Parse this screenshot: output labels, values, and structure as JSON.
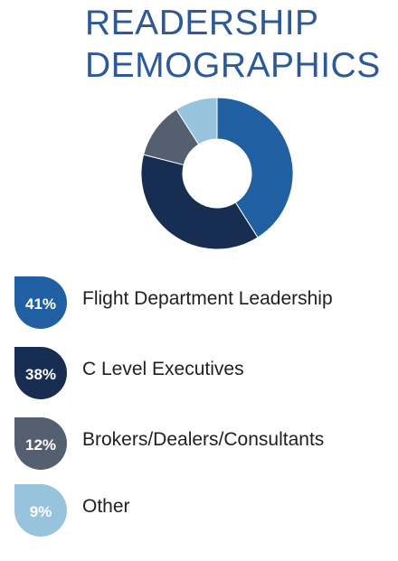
{
  "title": {
    "line1": "READERSHIP",
    "line2": "DEMOGRAPHICS"
  },
  "chart_data": {
    "type": "pie",
    "variant": "donut",
    "title": "READERSHIP DEMOGRAPHICS",
    "categories": [
      "Flight Department Leadership",
      "C Level Executives",
      "Brokers/Dealers/Consultants",
      "Other"
    ],
    "values": [
      41,
      38,
      12,
      9
    ],
    "value_labels": [
      "41%",
      "38%",
      "12%",
      "9%"
    ],
    "colors": [
      "#2060a2",
      "#172d52",
      "#545f70",
      "#98c3dd"
    ],
    "legend": "below"
  }
}
